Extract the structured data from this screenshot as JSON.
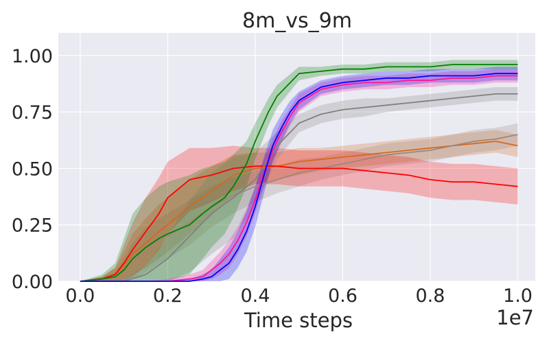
{
  "chart_data": {
    "type": "line",
    "title": "8m_vs_9m",
    "xlabel": "Time steps",
    "ylabel": "",
    "x_offset_label": "1e7",
    "xlim": [
      -0.05,
      1.04
    ],
    "ylim": [
      0.0,
      1.1
    ],
    "x_ticks": [
      0.0,
      0.2,
      0.4,
      0.6,
      0.8,
      1.0
    ],
    "x_tick_labels": [
      "0.0",
      "0.2",
      "0.4",
      "0.6",
      "0.8",
      "1.0"
    ],
    "y_ticks": [
      0.0,
      0.25,
      0.5,
      0.75,
      1.0
    ],
    "y_tick_labels": [
      "0.00",
      "0.25",
      "0.50",
      "0.75",
      "1.00"
    ],
    "grid": true,
    "background": "#EAEAF2",
    "series": [
      {
        "color": "#d2691e",
        "x": [
          0.0,
          0.05,
          0.08,
          0.1,
          0.12,
          0.15,
          0.18,
          0.2,
          0.25,
          0.3,
          0.35,
          0.4,
          0.45,
          0.5,
          0.55,
          0.6,
          0.65,
          0.7,
          0.75,
          0.8,
          0.85,
          0.9,
          0.95,
          1.0
        ],
        "y": [
          0.0,
          0.01,
          0.03,
          0.07,
          0.12,
          0.17,
          0.22,
          0.25,
          0.33,
          0.4,
          0.47,
          0.5,
          0.51,
          0.53,
          0.54,
          0.55,
          0.56,
          0.57,
          0.58,
          0.59,
          0.6,
          0.61,
          0.62,
          0.6
        ],
        "band": [
          0.0,
          0.01,
          0.03,
          0.06,
          0.09,
          0.11,
          0.12,
          0.12,
          0.12,
          0.11,
          0.09,
          0.07,
          0.06,
          0.06,
          0.05,
          0.05,
          0.05,
          0.05,
          0.05,
          0.05,
          0.05,
          0.05,
          0.05,
          0.05
        ]
      },
      {
        "color": "#9c8878",
        "x": [
          0.0,
          0.05,
          0.08,
          0.1,
          0.12,
          0.15,
          0.18,
          0.2,
          0.25,
          0.3,
          0.35,
          0.4,
          0.45,
          0.5,
          0.55,
          0.6,
          0.65,
          0.7,
          0.75,
          0.8,
          0.85,
          0.9,
          0.95,
          1.0
        ],
        "y": [
          0.0,
          0.01,
          0.02,
          0.05,
          0.09,
          0.14,
          0.18,
          0.2,
          0.26,
          0.33,
          0.38,
          0.42,
          0.45,
          0.48,
          0.5,
          0.52,
          0.54,
          0.56,
          0.57,
          0.58,
          0.6,
          0.62,
          0.63,
          0.65
        ],
        "band": [
          0.0,
          0.01,
          0.02,
          0.05,
          0.08,
          0.1,
          0.1,
          0.1,
          0.1,
          0.09,
          0.08,
          0.07,
          0.06,
          0.06,
          0.05,
          0.05,
          0.05,
          0.05,
          0.05,
          0.05,
          0.05,
          0.05,
          0.05,
          0.05
        ]
      },
      {
        "color": "#ff0000",
        "x": [
          0.0,
          0.05,
          0.08,
          0.1,
          0.12,
          0.15,
          0.18,
          0.2,
          0.25,
          0.3,
          0.35,
          0.4,
          0.45,
          0.5,
          0.55,
          0.6,
          0.65,
          0.7,
          0.75,
          0.8,
          0.85,
          0.9,
          0.95,
          1.0
        ],
        "y": [
          0.0,
          0.01,
          0.03,
          0.08,
          0.14,
          0.22,
          0.3,
          0.37,
          0.45,
          0.47,
          0.5,
          0.51,
          0.51,
          0.5,
          0.5,
          0.5,
          0.49,
          0.48,
          0.47,
          0.45,
          0.44,
          0.44,
          0.43,
          0.42
        ],
        "band": [
          0.0,
          0.01,
          0.03,
          0.08,
          0.12,
          0.15,
          0.16,
          0.16,
          0.14,
          0.12,
          0.1,
          0.08,
          0.08,
          0.08,
          0.08,
          0.08,
          0.08,
          0.08,
          0.08,
          0.08,
          0.08,
          0.08,
          0.08,
          0.08
        ]
      },
      {
        "color": "#808080",
        "x": [
          0.0,
          0.1,
          0.15,
          0.2,
          0.25,
          0.3,
          0.35,
          0.4,
          0.45,
          0.5,
          0.55,
          0.6,
          0.65,
          0.7,
          0.75,
          0.8,
          0.85,
          0.9,
          0.95,
          1.0
        ],
        "y": [
          0.0,
          0.0,
          0.03,
          0.1,
          0.2,
          0.3,
          0.37,
          0.45,
          0.6,
          0.7,
          0.74,
          0.76,
          0.77,
          0.78,
          0.79,
          0.8,
          0.81,
          0.82,
          0.83,
          0.83
        ],
        "band": [
          0.0,
          0.01,
          0.04,
          0.1,
          0.16,
          0.18,
          0.18,
          0.12,
          0.06,
          0.04,
          0.04,
          0.04,
          0.04,
          0.03,
          0.03,
          0.03,
          0.03,
          0.03,
          0.03,
          0.03
        ]
      },
      {
        "color": "#008000",
        "x": [
          0.0,
          0.05,
          0.08,
          0.1,
          0.12,
          0.15,
          0.18,
          0.2,
          0.25,
          0.28,
          0.3,
          0.33,
          0.35,
          0.38,
          0.4,
          0.43,
          0.45,
          0.5,
          0.55,
          0.6,
          0.65,
          0.7,
          0.75,
          0.8,
          0.85,
          0.9,
          0.95,
          1.0
        ],
        "y": [
          0.0,
          0.01,
          0.02,
          0.05,
          0.1,
          0.15,
          0.19,
          0.21,
          0.25,
          0.3,
          0.33,
          0.37,
          0.42,
          0.52,
          0.62,
          0.75,
          0.82,
          0.92,
          0.93,
          0.94,
          0.94,
          0.95,
          0.95,
          0.95,
          0.96,
          0.96,
          0.96,
          0.96
        ],
        "band": [
          0.0,
          0.02,
          0.06,
          0.14,
          0.2,
          0.22,
          0.23,
          0.23,
          0.22,
          0.2,
          0.18,
          0.16,
          0.14,
          0.1,
          0.08,
          0.06,
          0.05,
          0.03,
          0.02,
          0.02,
          0.02,
          0.02,
          0.02,
          0.02,
          0.02,
          0.02,
          0.02,
          0.02
        ]
      },
      {
        "color": "#ff1493",
        "x": [
          0.0,
          0.1,
          0.15,
          0.2,
          0.25,
          0.28,
          0.3,
          0.32,
          0.34,
          0.36,
          0.38,
          0.4,
          0.42,
          0.44,
          0.46,
          0.48,
          0.5,
          0.55,
          0.6,
          0.65,
          0.7,
          0.75,
          0.8,
          0.85,
          0.9,
          0.95,
          1.0
        ],
        "y": [
          0.0,
          0.0,
          0.0,
          0.0,
          0.01,
          0.02,
          0.05,
          0.08,
          0.12,
          0.18,
          0.26,
          0.36,
          0.48,
          0.58,
          0.66,
          0.73,
          0.79,
          0.85,
          0.87,
          0.88,
          0.88,
          0.89,
          0.89,
          0.9,
          0.9,
          0.91,
          0.91
        ],
        "band": [
          0.0,
          0.0,
          0.0,
          0.01,
          0.02,
          0.03,
          0.04,
          0.05,
          0.06,
          0.06,
          0.06,
          0.06,
          0.06,
          0.05,
          0.05,
          0.04,
          0.04,
          0.03,
          0.03,
          0.03,
          0.03,
          0.03,
          0.03,
          0.03,
          0.03,
          0.03,
          0.03
        ]
      },
      {
        "color": "#0000ff",
        "x": [
          0.0,
          0.1,
          0.15,
          0.2,
          0.25,
          0.28,
          0.3,
          0.32,
          0.34,
          0.36,
          0.38,
          0.4,
          0.42,
          0.44,
          0.46,
          0.48,
          0.5,
          0.55,
          0.6,
          0.65,
          0.7,
          0.75,
          0.8,
          0.85,
          0.9,
          0.95,
          1.0
        ],
        "y": [
          0.0,
          0.0,
          0.0,
          0.0,
          0.0,
          0.01,
          0.02,
          0.05,
          0.08,
          0.14,
          0.22,
          0.33,
          0.47,
          0.6,
          0.68,
          0.75,
          0.8,
          0.86,
          0.88,
          0.89,
          0.9,
          0.9,
          0.91,
          0.91,
          0.91,
          0.92,
          0.92
        ],
        "band": [
          0.0,
          0.0,
          0.0,
          0.0,
          0.01,
          0.02,
          0.03,
          0.05,
          0.07,
          0.08,
          0.09,
          0.09,
          0.08,
          0.07,
          0.06,
          0.05,
          0.04,
          0.03,
          0.03,
          0.03,
          0.03,
          0.03,
          0.03,
          0.03,
          0.03,
          0.03,
          0.03
        ]
      }
    ]
  }
}
